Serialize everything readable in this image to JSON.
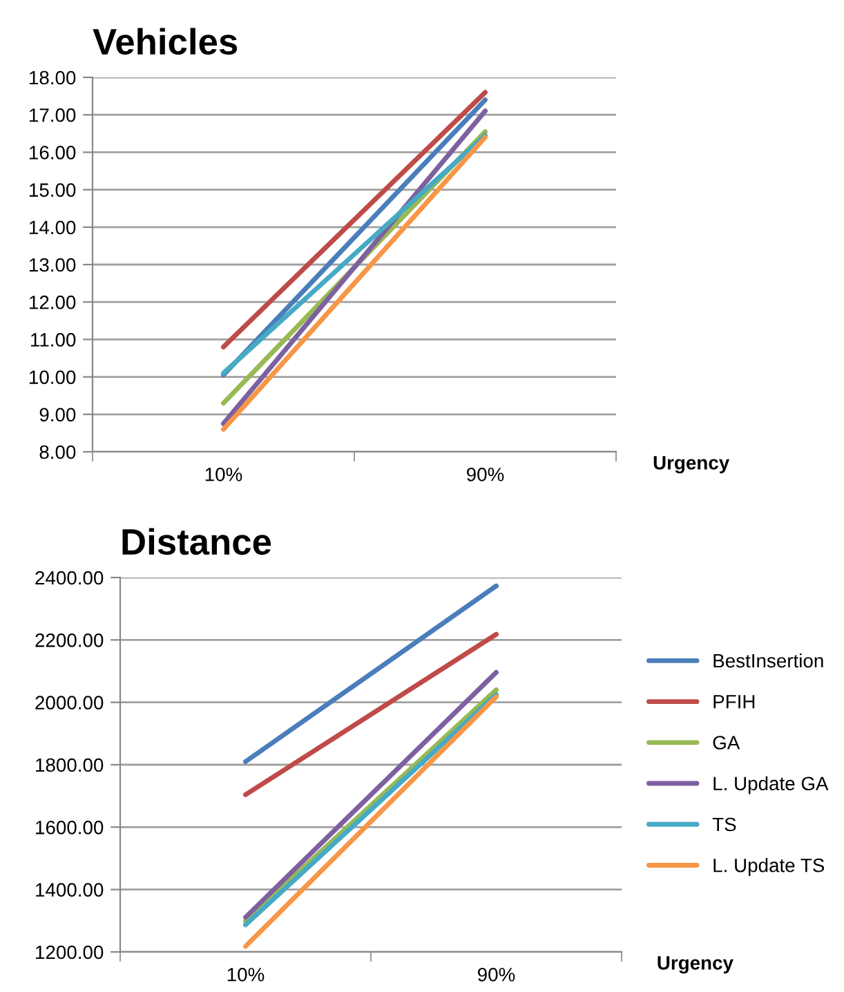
{
  "chart_data": [
    {
      "type": "line",
      "title": "Vehicles",
      "xlabel": "Urgency",
      "categories": [
        "10%",
        "90%"
      ],
      "ylim": [
        8,
        18
      ],
      "yticks": [
        {
          "value": 8,
          "label": "8.00"
        },
        {
          "value": 9,
          "label": "9.00"
        },
        {
          "value": 10,
          "label": "10.00"
        },
        {
          "value": 11,
          "label": "11.00"
        },
        {
          "value": 12,
          "label": "12.00"
        },
        {
          "value": 13,
          "label": "13.00"
        },
        {
          "value": 14,
          "label": "14.00"
        },
        {
          "value": 15,
          "label": "15.00"
        },
        {
          "value": 16,
          "label": "16.00"
        },
        {
          "value": 17,
          "label": "17.00"
        },
        {
          "value": 18,
          "label": "18.00"
        }
      ],
      "grid": "y",
      "legend": false,
      "marker": "none",
      "line_style": "solid",
      "series": [
        {
          "color": "#4a7ebb",
          "values": [
            10.05,
            17.4
          ]
        },
        {
          "color": "#be4b48",
          "values": [
            10.8,
            17.6
          ]
        },
        {
          "color": "#98b954",
          "values": [
            9.3,
            16.55
          ]
        },
        {
          "color": "#7d60a0",
          "values": [
            8.75,
            17.1
          ]
        },
        {
          "color": "#46aac5",
          "values": [
            10.1,
            16.45
          ]
        },
        {
          "color": "#f79646",
          "values": [
            8.6,
            16.4
          ]
        }
      ]
    },
    {
      "type": "line",
      "title": "Distance",
      "xlabel": "Urgency",
      "categories": [
        "10%",
        "90%"
      ],
      "ylim": [
        1200,
        2400
      ],
      "yticks": [
        {
          "value": 1200,
          "label": "1200.00"
        },
        {
          "value": 1400,
          "label": "1400.00"
        },
        {
          "value": 1600,
          "label": "1600.00"
        },
        {
          "value": 1800,
          "label": "1800.00"
        },
        {
          "value": 2000,
          "label": "2000.00"
        },
        {
          "value": 2200,
          "label": "2200.00"
        },
        {
          "value": 2400,
          "label": "2400.00"
        }
      ],
      "grid": "y",
      "legend": "right",
      "marker": "none",
      "line_style": "solid",
      "series": [
        {
          "name": "BestInsertion",
          "color": "#4a7ebb",
          "values": [
            1810,
            2373
          ]
        },
        {
          "name": "PFIH",
          "color": "#be4b48",
          "values": [
            1704,
            2218
          ]
        },
        {
          "name": "GA",
          "color": "#98b954",
          "values": [
            1299,
            2040
          ]
        },
        {
          "name": "L. Update GA",
          "color": "#7d60a0",
          "values": [
            1311,
            2096
          ]
        },
        {
          "name": "TS",
          "color": "#46aac5",
          "values": [
            1287,
            2025
          ]
        },
        {
          "name": "L. Update TS",
          "color": "#f79646",
          "values": [
            1218,
            2018
          ]
        }
      ]
    }
  ]
}
